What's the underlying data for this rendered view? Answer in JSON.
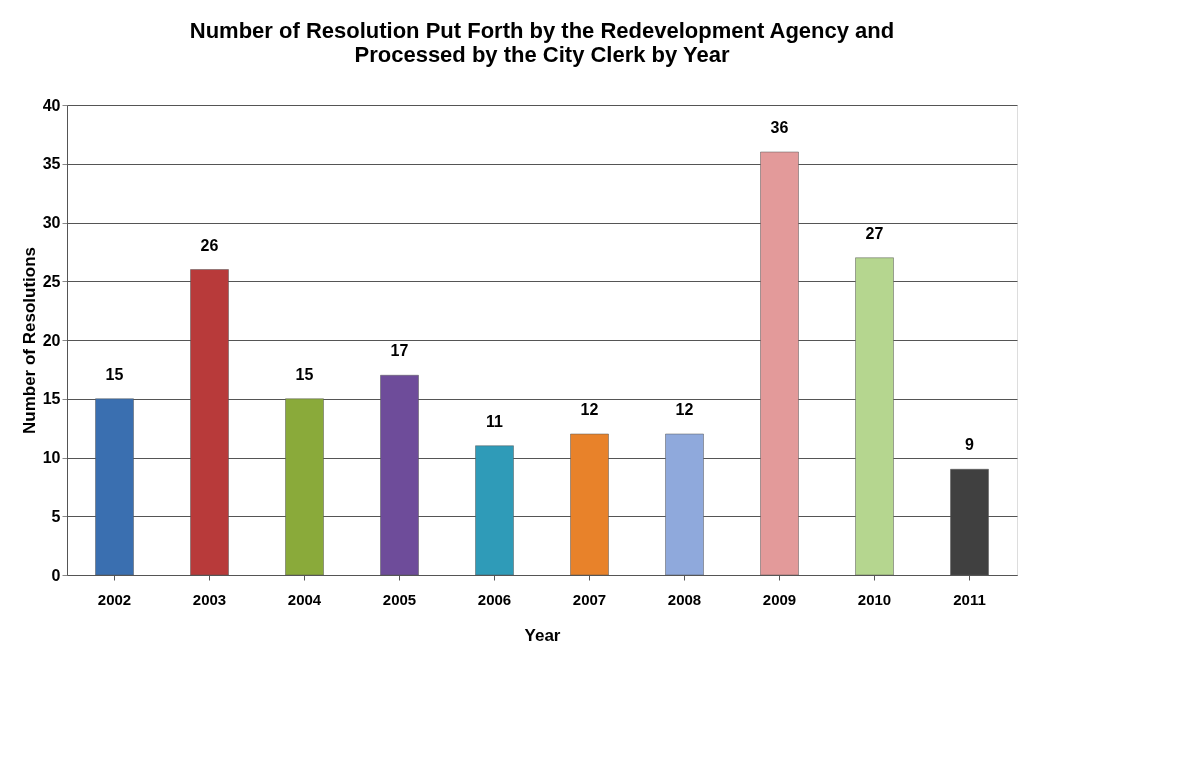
{
  "chart_data": {
    "type": "bar",
    "title": [
      "Number of Resolution Put Forth by the Redevelopment Agency and",
      "Processed by the City Clerk by Year"
    ],
    "xlabel": "Year",
    "ylabel": "Number of Resolutions",
    "categories": [
      "2002",
      "2003",
      "2004",
      "2005",
      "2006",
      "2007",
      "2008",
      "2009",
      "2010",
      "2011"
    ],
    "values": [
      15,
      26,
      15,
      17,
      11,
      12,
      12,
      36,
      27,
      9
    ],
    "colors": [
      "#3a6fb0",
      "#b83a3a",
      "#8aaa3a",
      "#6e4c9a",
      "#2f9bb8",
      "#e8822a",
      "#8fa9dc",
      "#e39a9a",
      "#b5d68f",
      "#404040"
    ],
    "ylim": [
      0,
      40
    ],
    "yticks": [
      0,
      5,
      10,
      15,
      20,
      25,
      30,
      35,
      40
    ],
    "grid": "y",
    "data_labels": true,
    "legend": false
  }
}
